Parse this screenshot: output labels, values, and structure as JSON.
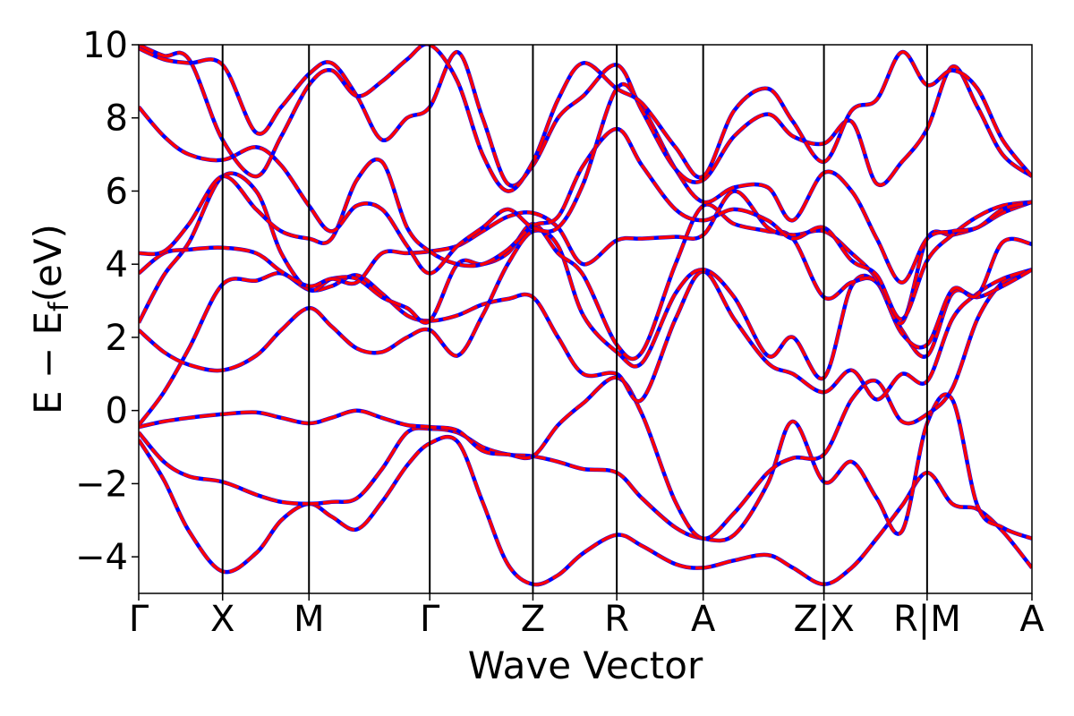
{
  "chart_data": {
    "type": "line",
    "xlabel": "Wave Vector",
    "ylabel": "E − E",
    "ylabel_sub": "f",
    "ylabel_unit": "(eV)",
    "ylim": [
      -5,
      10
    ],
    "yticks": [
      -4,
      -2,
      0,
      2,
      4,
      6,
      8,
      10
    ],
    "ytick_labels": [
      "−4",
      "−2",
      "0",
      "2",
      "4",
      "6",
      "8",
      "10"
    ],
    "xlim": [
      0,
      10.65
    ],
    "kpoints": [
      {
        "x": 0.0,
        "label": "Γ"
      },
      {
        "x": 1.0,
        "label": "X"
      },
      {
        "x": 2.03,
        "label": "M"
      },
      {
        "x": 3.47,
        "label": "Γ"
      },
      {
        "x": 4.7,
        "label": "Z"
      },
      {
        "x": 5.7,
        "label": "R"
      },
      {
        "x": 6.73,
        "label": "A"
      },
      {
        "x": 8.17,
        "label": "Z|X"
      },
      {
        "x": 9.4,
        "label": "R|M"
      },
      {
        "x": 10.65,
        "label": "A"
      }
    ],
    "grid": false,
    "legend": "none",
    "colors": {
      "dft": "#0000ff",
      "fit": "#ff0000",
      "vline": "#000000"
    },
    "bands": [
      {
        "x": [
          0,
          0.3,
          0.6,
          1.0,
          1.4,
          1.7,
          2.03,
          2.3,
          2.6,
          2.9,
          3.2,
          3.47,
          3.8,
          4.1,
          4.4,
          4.7,
          5.0,
          5.3,
          5.7,
          6.0,
          6.4,
          6.73,
          7.1,
          7.5,
          7.8,
          8.17,
          8.5,
          8.8,
          9.1,
          9.4,
          9.7,
          10.0,
          10.3,
          10.65
        ],
        "y": [
          -0.8,
          -1.9,
          -3.3,
          -4.4,
          -3.9,
          -3.0,
          -2.55,
          -2.9,
          -3.25,
          -2.5,
          -1.5,
          -0.9,
          -0.85,
          -2.5,
          -4.2,
          -4.75,
          -4.5,
          -3.9,
          -3.4,
          -3.7,
          -4.2,
          -4.3,
          -4.1,
          -3.95,
          -4.3,
          -4.75,
          -4.3,
          -3.5,
          -2.6,
          -1.7,
          -2.55,
          -2.7,
          -3.3,
          -4.3
        ]
      },
      {
        "x": [
          0,
          0.3,
          0.6,
          1.0,
          1.4,
          1.7,
          2.03,
          2.3,
          2.6,
          2.9,
          3.2,
          3.47,
          3.8,
          4.1,
          4.4,
          4.7,
          5.0,
          5.3,
          5.7,
          6.0,
          6.4,
          6.73,
          7.1,
          7.5,
          7.8,
          8.17,
          8.5,
          8.8,
          9.1,
          9.4,
          9.7,
          10.0,
          10.3,
          10.65
        ],
        "y": [
          -0.6,
          -1.4,
          -1.8,
          -1.95,
          -2.3,
          -2.5,
          -2.55,
          -2.5,
          -2.4,
          -1.6,
          -0.6,
          -0.5,
          -0.6,
          -1.0,
          -1.2,
          -1.25,
          -1.4,
          -1.6,
          -1.7,
          -2.4,
          -3.2,
          -3.5,
          -3.4,
          -2.0,
          -0.3,
          -1.95,
          -1.4,
          -2.4,
          -3.3,
          -0.35,
          0.3,
          -2.6,
          -3.2,
          -3.5
        ]
      },
      {
        "x": [
          0,
          0.3,
          0.6,
          1.0,
          1.4,
          1.7,
          2.03,
          2.3,
          2.6,
          2.9,
          3.2,
          3.47,
          3.8,
          4.1,
          4.4,
          4.7,
          5.0,
          5.3,
          5.7,
          6.0,
          6.4,
          6.73,
          7.1,
          7.5,
          7.8,
          8.17,
          8.5,
          8.8,
          9.1,
          9.4,
          9.7,
          10.0,
          10.3,
          10.65
        ],
        "y": [
          -0.45,
          -0.3,
          -0.2,
          -0.1,
          -0.05,
          -0.2,
          -0.35,
          -0.2,
          0.0,
          -0.2,
          -0.4,
          -0.45,
          -0.55,
          -1.1,
          -1.2,
          -1.25,
          -0.4,
          0.2,
          0.9,
          -0.1,
          -2.5,
          -3.5,
          -2.8,
          -1.7,
          -1.3,
          -1.2,
          0.3,
          0.8,
          -0.3,
          -0.1,
          0.6,
          2.5,
          3.5,
          3.85
        ]
      },
      {
        "x": [
          0,
          0.3,
          0.6,
          1.0,
          1.4,
          1.7,
          2.03,
          2.3,
          2.6,
          2.9,
          3.2,
          3.47,
          3.8,
          4.1,
          4.4,
          4.7,
          5.0,
          5.3,
          5.7,
          6.0,
          6.4,
          6.73,
          7.1,
          7.5,
          7.8,
          8.17,
          8.5,
          8.8,
          9.1,
          9.4,
          9.7,
          10.0,
          10.3,
          10.65
        ],
        "y": [
          -0.4,
          0.5,
          1.7,
          3.45,
          3.55,
          3.75,
          3.3,
          3.4,
          3.7,
          3.2,
          2.6,
          2.45,
          2.6,
          2.9,
          3.05,
          3.1,
          2.0,
          1.0,
          1.0,
          0.3,
          2.5,
          3.8,
          2.5,
          1.3,
          1.0,
          0.5,
          1.1,
          0.3,
          1.0,
          0.8,
          2.5,
          3.2,
          3.6,
          3.85
        ]
      },
      {
        "x": [
          0,
          0.3,
          0.6,
          1.0,
          1.4,
          1.7,
          2.03,
          2.3,
          2.6,
          2.9,
          3.2,
          3.47,
          3.8,
          4.1,
          4.4,
          4.7,
          5.0,
          5.3,
          5.7,
          6.0,
          6.4,
          6.73,
          7.1,
          7.5,
          7.8,
          8.17,
          8.5,
          8.8,
          9.1,
          9.4,
          9.7,
          10.0,
          10.3,
          10.65
        ],
        "y": [
          2.2,
          1.6,
          1.25,
          1.1,
          1.5,
          2.2,
          2.8,
          2.3,
          1.7,
          1.6,
          2.0,
          2.2,
          1.5,
          2.6,
          4.0,
          4.9,
          4.5,
          2.6,
          1.6,
          1.3,
          3.2,
          3.85,
          3.1,
          1.5,
          2.0,
          0.9,
          3.4,
          3.5,
          2.2,
          1.5,
          3.2,
          3.1,
          3.4,
          3.85
        ]
      },
      {
        "x": [
          0,
          0.3,
          0.6,
          1.0,
          1.4,
          1.7,
          2.03,
          2.3,
          2.6,
          2.9,
          3.2,
          3.47,
          3.8,
          4.1,
          4.4,
          4.7,
          5.0,
          5.3,
          5.7,
          6.0,
          6.4,
          6.73,
          7.1,
          7.5,
          7.8,
          8.17,
          8.5,
          8.8,
          9.1,
          9.4,
          9.7,
          10.0,
          10.3,
          10.65
        ],
        "y": [
          2.4,
          3.7,
          4.6,
          6.4,
          6.0,
          4.3,
          3.3,
          3.6,
          3.6,
          3.1,
          2.8,
          2.45,
          4.0,
          4.0,
          4.3,
          5.1,
          4.3,
          3.7,
          1.8,
          1.6,
          4.0,
          5.6,
          5.1,
          4.9,
          4.7,
          3.1,
          3.5,
          3.5,
          2.1,
          1.8,
          3.3,
          3.15,
          4.6,
          4.55
        ]
      },
      {
        "x": [
          0,
          0.3,
          0.6,
          1.0,
          1.4,
          1.7,
          2.03,
          2.3,
          2.6,
          2.9,
          3.2,
          3.47,
          3.8,
          4.1,
          4.4,
          4.7,
          5.0,
          5.3,
          5.7,
          6.0,
          6.4,
          6.73,
          7.1,
          7.5,
          7.8,
          8.17,
          8.5,
          8.8,
          9.1,
          9.4,
          9.7,
          10.0,
          10.3,
          10.65
        ],
        "y": [
          3.75,
          4.3,
          4.4,
          4.45,
          4.3,
          3.8,
          3.4,
          3.6,
          3.5,
          4.3,
          4.3,
          4.35,
          4.5,
          4.9,
          5.3,
          5.4,
          5.0,
          4.0,
          4.65,
          4.7,
          4.75,
          4.8,
          6.0,
          5.0,
          4.8,
          4.9,
          4.3,
          3.6,
          2.4,
          4.7,
          4.8,
          5.0,
          5.4,
          5.7
        ]
      },
      {
        "x": [
          0,
          0.3,
          0.6,
          1.0,
          1.4,
          1.7,
          2.03,
          2.3,
          2.6,
          2.9,
          3.2,
          3.47,
          3.8,
          4.1,
          4.4,
          4.7,
          5.0,
          5.3,
          5.7,
          6.0,
          6.4,
          6.73,
          7.1,
          7.5,
          7.8,
          8.17,
          8.5,
          8.8,
          9.1,
          9.4,
          9.7,
          10.0,
          10.3,
          10.65
        ],
        "y": [
          4.3,
          4.35,
          5.1,
          6.4,
          5.5,
          4.9,
          4.7,
          4.7,
          6.3,
          6.8,
          5.0,
          4.35,
          4.0,
          4.0,
          4.4,
          5.05,
          5.3,
          6.7,
          7.7,
          6.7,
          5.5,
          5.2,
          5.5,
          5.2,
          4.7,
          5.0,
          4.1,
          3.7,
          2.5,
          4.1,
          4.8,
          5.3,
          5.6,
          5.7
        ]
      },
      {
        "x": [
          0,
          0.3,
          0.6,
          1.0,
          1.4,
          1.7,
          2.03,
          2.3,
          2.6,
          2.9,
          3.2,
          3.47,
          3.8,
          4.1,
          4.4,
          4.7,
          5.0,
          5.3,
          5.7,
          6.0,
          6.4,
          6.73,
          7.1,
          7.5,
          7.8,
          8.17,
          8.5,
          8.8,
          9.1,
          9.4,
          9.7,
          10.0,
          10.3,
          10.65
        ],
        "y": [
          8.3,
          7.5,
          7.0,
          6.85,
          7.2,
          6.7,
          5.6,
          4.9,
          5.6,
          5.5,
          4.5,
          3.75,
          4.5,
          5.0,
          5.5,
          5.0,
          5.0,
          6.2,
          8.8,
          8.3,
          6.6,
          5.7,
          6.1,
          6.1,
          5.2,
          6.5,
          6.0,
          4.7,
          3.5,
          4.7,
          4.9,
          5.0,
          5.5,
          5.7
        ]
      },
      {
        "x": [
          0,
          0.3,
          0.6,
          1.0,
          1.4,
          1.7,
          2.03,
          2.3,
          2.6,
          2.9,
          3.2,
          3.47,
          3.8,
          4.1,
          4.4,
          4.7,
          5.0,
          5.3,
          5.7,
          6.0,
          6.4,
          6.73,
          7.1,
          7.5,
          7.8,
          8.17,
          8.5,
          8.8,
          9.1,
          9.4,
          9.7,
          10.0,
          10.3,
          10.65
        ],
        "y": [
          9.9,
          9.6,
          9.5,
          9.45,
          7.6,
          8.3,
          9.2,
          9.5,
          8.6,
          7.4,
          8.0,
          8.3,
          9.8,
          8.0,
          6.2,
          6.7,
          8.0,
          8.6,
          9.45,
          8.2,
          6.6,
          6.3,
          7.5,
          8.1,
          7.5,
          7.3,
          7.9,
          6.2,
          6.8,
          7.7,
          9.4,
          8.3,
          7.0,
          6.4
        ]
      },
      {
        "x": [
          0,
          0.3,
          0.6,
          1.0,
          1.4,
          1.7,
          2.03,
          2.3,
          2.6,
          2.9,
          3.2,
          3.47,
          3.8,
          4.1,
          4.4,
          4.7,
          5.0,
          5.3,
          5.7,
          6.0,
          6.4,
          6.73,
          7.1,
          7.5,
          7.8,
          8.17,
          8.5,
          8.8,
          9.1,
          9.4,
          9.7,
          10.0,
          10.3,
          10.65
        ],
        "y": [
          10.0,
          9.7,
          9.6,
          7.4,
          6.4,
          7.5,
          8.9,
          9.3,
          8.6,
          9.0,
          9.6,
          10.0,
          9.0,
          7.0,
          6.0,
          6.8,
          8.5,
          9.5,
          8.8,
          8.4,
          7.2,
          6.4,
          8.2,
          8.8,
          7.9,
          6.8,
          8.2,
          8.5,
          9.8,
          8.9,
          9.3,
          8.8,
          7.4,
          6.4
        ]
      }
    ]
  }
}
